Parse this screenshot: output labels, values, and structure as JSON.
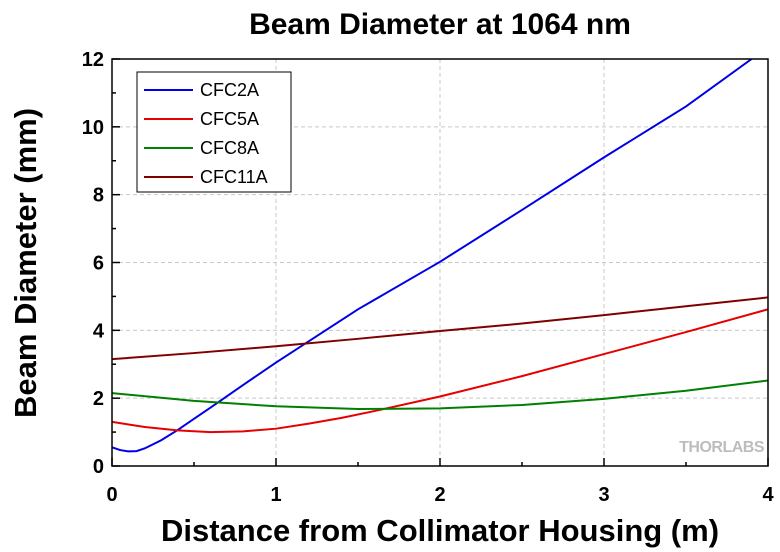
{
  "chart_data": {
    "type": "line",
    "title": "Beam Diameter at 1064 nm",
    "xlabel": "Distance from Collimator Housing (m)",
    "ylabel": "Beam Diameter (mm)",
    "xlim": [
      0,
      4
    ],
    "ylim": [
      0,
      12
    ],
    "xticks": [
      0,
      1,
      2,
      3,
      4
    ],
    "yticks": [
      0,
      2,
      4,
      6,
      8,
      10,
      12
    ],
    "grid": true,
    "legend_position": "top-left",
    "series": [
      {
        "name": "CFC2A",
        "color": "#0000e6",
        "x": [
          0,
          0.05,
          0.1,
          0.15,
          0.2,
          0.3,
          0.4,
          0.5,
          0.6,
          0.8,
          1.0,
          1.5,
          2.0,
          2.5,
          3.0,
          3.5,
          3.9
        ],
        "y": [
          0.55,
          0.47,
          0.43,
          0.44,
          0.52,
          0.76,
          1.06,
          1.39,
          1.72,
          2.39,
          3.05,
          4.62,
          6.02,
          7.55,
          9.1,
          10.6,
          12.0
        ]
      },
      {
        "name": "CFC5A",
        "color": "#e60000",
        "x": [
          0,
          0.2,
          0.4,
          0.6,
          0.8,
          1.0,
          1.2,
          1.4,
          1.6,
          2.0,
          2.5,
          3.0,
          3.5,
          4.0
        ],
        "y": [
          1.3,
          1.15,
          1.05,
          1.0,
          1.02,
          1.1,
          1.25,
          1.42,
          1.62,
          2.05,
          2.65,
          3.3,
          3.95,
          4.62
        ]
      },
      {
        "name": "CFC8A",
        "color": "#008000",
        "x": [
          0,
          0.5,
          1.0,
          1.5,
          2.0,
          2.5,
          3.0,
          3.5,
          4.0
        ],
        "y": [
          2.15,
          1.92,
          1.76,
          1.68,
          1.7,
          1.8,
          1.98,
          2.22,
          2.52
        ]
      },
      {
        "name": "CFC11A",
        "color": "#800000",
        "x": [
          0,
          0.5,
          1.0,
          1.5,
          2.0,
          2.5,
          3.0,
          3.5,
          4.0
        ],
        "y": [
          3.15,
          3.33,
          3.53,
          3.75,
          3.98,
          4.2,
          4.45,
          4.71,
          4.97
        ]
      }
    ]
  },
  "watermark": "THORLABS"
}
